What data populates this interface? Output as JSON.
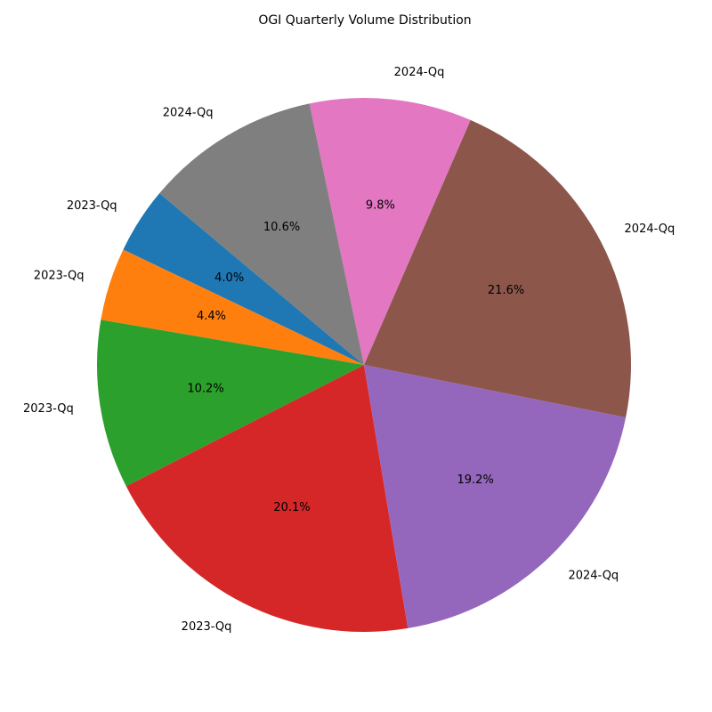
{
  "chart_data": {
    "type": "pie",
    "title": "OGI Quarterly Volume Distribution",
    "start_angle_deg": 140,
    "direction": "counterclockwise",
    "slices": [
      {
        "label": "2023-Qq",
        "value": 4.0,
        "pct_text": "4.0%",
        "color": "#1f77b4"
      },
      {
        "label": "2023-Qq",
        "value": 4.4,
        "pct_text": "4.4%",
        "color": "#ff7f0e"
      },
      {
        "label": "2023-Qq",
        "value": 10.2,
        "pct_text": "10.2%",
        "color": "#2ca02c"
      },
      {
        "label": "2023-Qq",
        "value": 20.1,
        "pct_text": "20.1%",
        "color": "#d62728"
      },
      {
        "label": "2024-Qq",
        "value": 19.2,
        "pct_text": "19.2%",
        "color": "#9467bd"
      },
      {
        "label": "2024-Qq",
        "value": 21.6,
        "pct_text": "21.6%",
        "color": "#8c564b"
      },
      {
        "label": "2024-Qq",
        "value": 9.8,
        "pct_text": "9.8%",
        "color": "#e377c2"
      },
      {
        "label": "2024-Qq",
        "value": 10.6,
        "pct_text": "10.6%",
        "color": "#7f7f7f"
      }
    ]
  }
}
